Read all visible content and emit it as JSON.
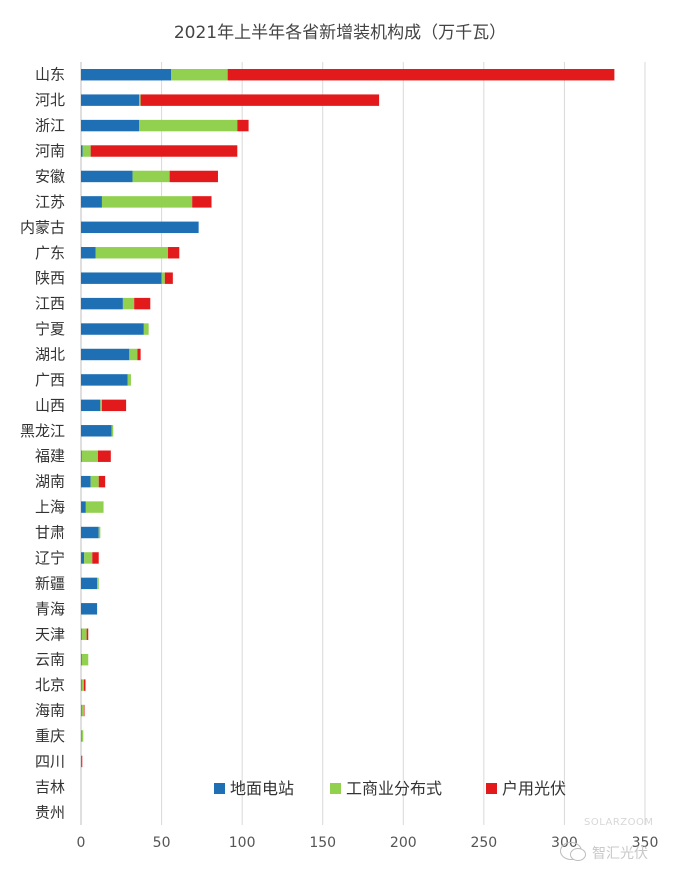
{
  "chart_data": {
    "type": "bar",
    "orientation": "horizontal",
    "stacked": true,
    "title": "2021年上半年各省新增装机构成（万千瓦）",
    "categories": [
      "山东",
      "河北",
      "浙江",
      "河南",
      "安徽",
      "江苏",
      "内蒙古",
      "广东",
      "陕西",
      "江西",
      "宁夏",
      "湖北",
      "广西",
      "山西",
      "黑龙江",
      "福建",
      "湖南",
      "上海",
      "甘肃",
      "辽宁",
      "新疆",
      "青海",
      "天津",
      "云南",
      "北京",
      "海南",
      "重庆",
      "四川",
      "吉林",
      "贵州"
    ],
    "series": [
      {
        "name": "地面电站",
        "color": "#1f6fb4",
        "values": [
          56,
          36,
          36,
          1,
          32,
          13,
          73,
          9,
          50,
          26,
          39,
          30,
          29,
          12,
          19,
          0.5,
          6,
          3,
          11,
          2,
          10,
          10,
          0.5,
          0.5,
          0.3,
          0.3,
          0.2,
          0,
          0,
          0
        ]
      },
      {
        "name": "工商业分布式",
        "color": "#92d050",
        "values": [
          35,
          1,
          61,
          5,
          23,
          56,
          0,
          45,
          2,
          7,
          3,
          5,
          2,
          1,
          1,
          10,
          5,
          11,
          1,
          5,
          1,
          0,
          3,
          4,
          1.5,
          1.5,
          1.2,
          0.2,
          0,
          0
        ]
      },
      {
        "name": "户用光伏",
        "color": "#e31a1c",
        "values": [
          240,
          148,
          7,
          91,
          30,
          12,
          0,
          7,
          5,
          10,
          0,
          2,
          0,
          15,
          0,
          8,
          4,
          0,
          0,
          4,
          0,
          0,
          1,
          0,
          1,
          0.2,
          0,
          0.6,
          0,
          0
        ]
      }
    ],
    "xlim": [
      0,
      350
    ],
    "xticks": [
      0,
      50,
      100,
      150,
      200,
      250,
      300,
      350
    ],
    "grid": true,
    "legend_position": "bottom-right inside"
  },
  "watermark": "SOLARZOOM",
  "wechat_label": "智汇光伏"
}
